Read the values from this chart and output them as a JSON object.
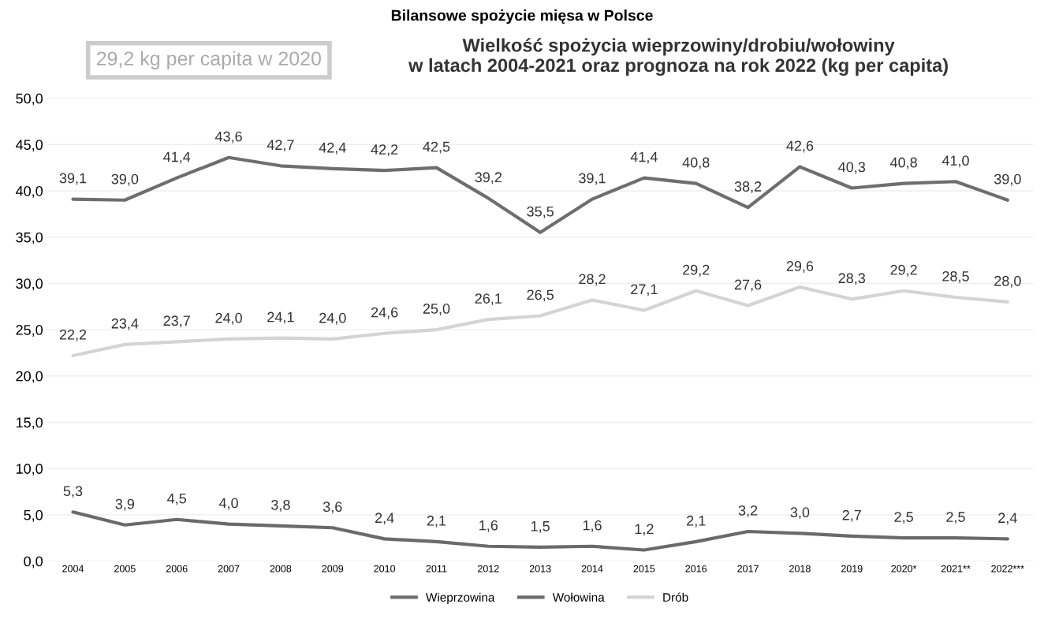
{
  "chart_data": {
    "type": "line",
    "title": "Bilansowe spożycie mięsa w Polsce",
    "subtitle": "Wielkość spożycia wieprzowiny/drobiu/wołowiny\nw latach 2004-2021 oraz prognoza na rok 2022 (kg per capita)",
    "annotations": [
      "29,2 kg per capita w 2020"
    ],
    "categories": [
      "2004",
      "2005",
      "2006",
      "2007",
      "2008",
      "2009",
      "2010",
      "2011",
      "2012",
      "2013",
      "2014",
      "2015",
      "2016",
      "2017",
      "2018",
      "2019",
      "2020*",
      "2021**",
      "2022***"
    ],
    "series": [
      {
        "name": "Wieprzowina",
        "color": "#6e6e6e",
        "values": [
          39.1,
          39.0,
          41.4,
          43.6,
          42.7,
          42.4,
          42.2,
          42.5,
          39.2,
          35.5,
          39.1,
          41.4,
          40.8,
          38.2,
          42.6,
          40.3,
          40.8,
          41.0,
          39.0
        ],
        "value_labels": [
          "39,1",
          "39,0",
          "41,4",
          "43,6",
          "42,7",
          "42,4",
          "42,2",
          "42,5",
          "39,2",
          "35,5",
          "39,1",
          "41,4",
          "40,8",
          "38,2",
          "42,6",
          "40,3",
          "40,8",
          "41,0",
          "39,0"
        ]
      },
      {
        "name": "Wołowina",
        "color": "#6a6a6a",
        "values": [
          5.3,
          3.9,
          4.5,
          4.0,
          3.8,
          3.6,
          2.4,
          2.1,
          1.6,
          1.5,
          1.6,
          1.2,
          2.1,
          3.2,
          3.0,
          2.7,
          2.5,
          2.5,
          2.4
        ],
        "value_labels": [
          "5,3",
          "3,9",
          "4,5",
          "4,0",
          "3,8",
          "3,6",
          "2,4",
          "2,1",
          "1,6",
          "1,5",
          "1,6",
          "1,2",
          "2,1",
          "3,2",
          "3,0",
          "2,7",
          "2,5",
          "2,5",
          "2,4"
        ]
      },
      {
        "name": "Drób",
        "color": "#d4d4d4",
        "values": [
          22.2,
          23.4,
          23.7,
          24.0,
          24.1,
          24.0,
          24.6,
          25.0,
          26.1,
          26.5,
          28.2,
          27.1,
          29.2,
          27.6,
          29.6,
          28.3,
          29.2,
          28.5,
          28.0
        ],
        "value_labels": [
          "22,2",
          "23,4",
          "23,7",
          "24,0",
          "24,1",
          "24,0",
          "24,6",
          "25,0",
          "26,1",
          "26,5",
          "28,2",
          "27,1",
          "29,2",
          "27,6",
          "29,6",
          "28,3",
          "29,2",
          "28,5",
          "28,0"
        ]
      }
    ],
    "ylim": [
      0,
      50
    ],
    "yticks": [
      {
        "value": 0,
        "label": "0,0"
      },
      {
        "value": 5,
        "label": "5,0"
      },
      {
        "value": 10,
        "label": "10,0"
      },
      {
        "value": 15,
        "label": "15,0"
      },
      {
        "value": 20,
        "label": "20,0"
      },
      {
        "value": 25,
        "label": "25,0"
      },
      {
        "value": 30,
        "label": "30,0"
      },
      {
        "value": 35,
        "label": "35,0"
      },
      {
        "value": 40,
        "label": "40,0"
      },
      {
        "value": 45,
        "label": "45,0"
      },
      {
        "value": 50,
        "label": "50,0"
      }
    ],
    "grid": "y",
    "legend": "bottom",
    "marker": "none",
    "line_style": "solid"
  }
}
